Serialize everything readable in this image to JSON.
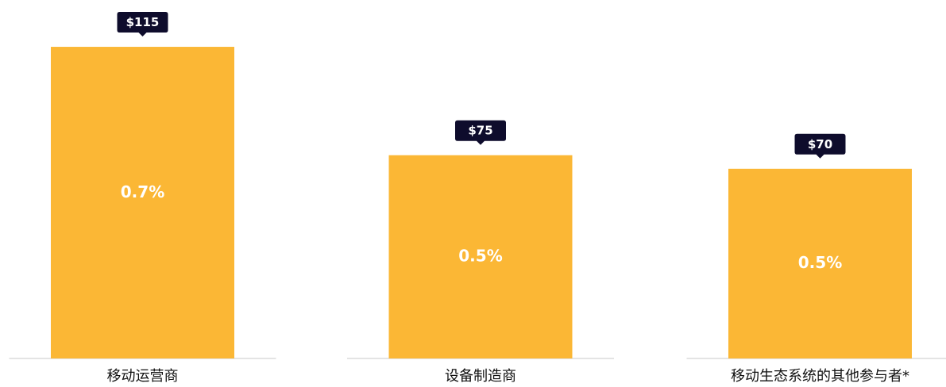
{
  "chart_data": {
    "type": "bar",
    "categories": [
      "移动运营商",
      "设备制造商",
      "移动生态系统的其他参与者*"
    ],
    "values": [
      115,
      75,
      70
    ],
    "value_labels": [
      "$115",
      "$75",
      "$70"
    ],
    "shares": {
      "values": [
        0.7,
        0.5,
        0.5
      ],
      "value_labels": [
        "0.7%",
        "0.5%",
        "0.5%"
      ]
    },
    "color": "#FBB735"
  }
}
